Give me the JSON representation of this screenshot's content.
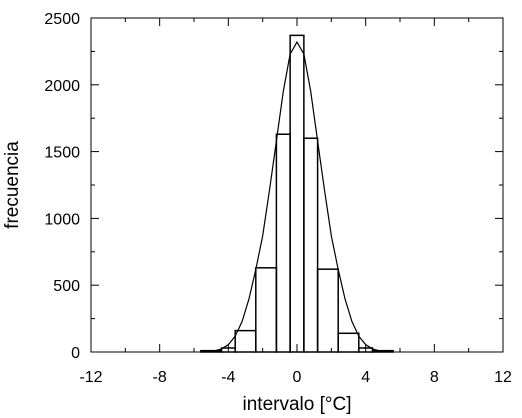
{
  "chart_data": {
    "type": "bar",
    "title": "",
    "xlabel": "intervalo [°C]",
    "ylabel": "frecuencia",
    "xlim": [
      -12,
      12
    ],
    "ylim": [
      0,
      2500
    ],
    "xticks": [
      -12,
      -8,
      -4,
      0,
      4,
      8,
      12
    ],
    "yticks": [
      0,
      500,
      1000,
      1500,
      2000,
      2500
    ],
    "grid": false,
    "bin_edges": [
      -5.6,
      -4.4,
      -3.6,
      -2.4,
      -1.2,
      -0.4,
      0.4,
      1.2,
      2.4,
      3.6,
      4.4,
      5.6
    ],
    "values": [
      10,
      30,
      160,
      630,
      1630,
      2370,
      1600,
      620,
      140,
      30,
      10
    ],
    "fit_curve": {
      "type": "gaussian",
      "x": [
        -5.6,
        -5.2,
        -4.8,
        -4.4,
        -4.0,
        -3.6,
        -3.2,
        -2.8,
        -2.4,
        -2.0,
        -1.6,
        -1.2,
        -0.8,
        -0.4,
        0,
        0.4,
        0.8,
        1.2,
        1.6,
        2.0,
        2.4,
        2.8,
        3.2,
        3.6,
        4.0,
        4.4,
        4.8,
        5.2,
        5.6
      ],
      "y": [
        1,
        3,
        9,
        23,
        55,
        118,
        228,
        396,
        618,
        869,
        1213,
        1580,
        1950,
        2230,
        2320,
        2230,
        1950,
        1580,
        1213,
        869,
        618,
        396,
        228,
        118,
        55,
        23,
        9,
        3,
        1
      ]
    }
  }
}
